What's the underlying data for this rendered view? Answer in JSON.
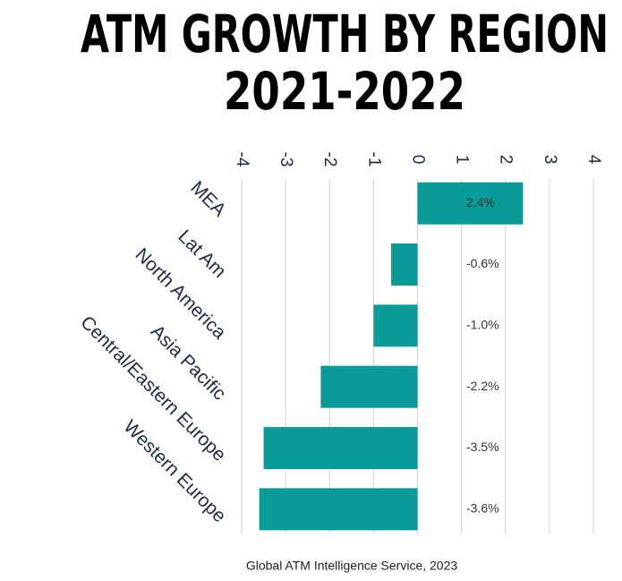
{
  "chart_data": {
    "type": "hbar",
    "title": "ATM GROWTH BY REGION",
    "subtitle": "2021-2022",
    "categories": [
      "MEA",
      "Lat Am",
      "North America",
      "Asia Pacific",
      "Central/Eastern Europe",
      "Western Europe"
    ],
    "values": [
      2.4,
      -0.6,
      -1.0,
      -2.2,
      -3.5,
      -3.6
    ],
    "value_labels": [
      "2.4%",
      "-0.6%",
      "-1.0%",
      "-2.2%",
      "-3.5%",
      "-3.6%"
    ],
    "color": "#0a9a98",
    "xlim": [
      -4,
      4
    ],
    "xticks": [
      -4,
      -3,
      -2,
      -1,
      0,
      1,
      2,
      3,
      4
    ],
    "grid": true,
    "source": "Global ATM Intelligence Service, 2023"
  }
}
